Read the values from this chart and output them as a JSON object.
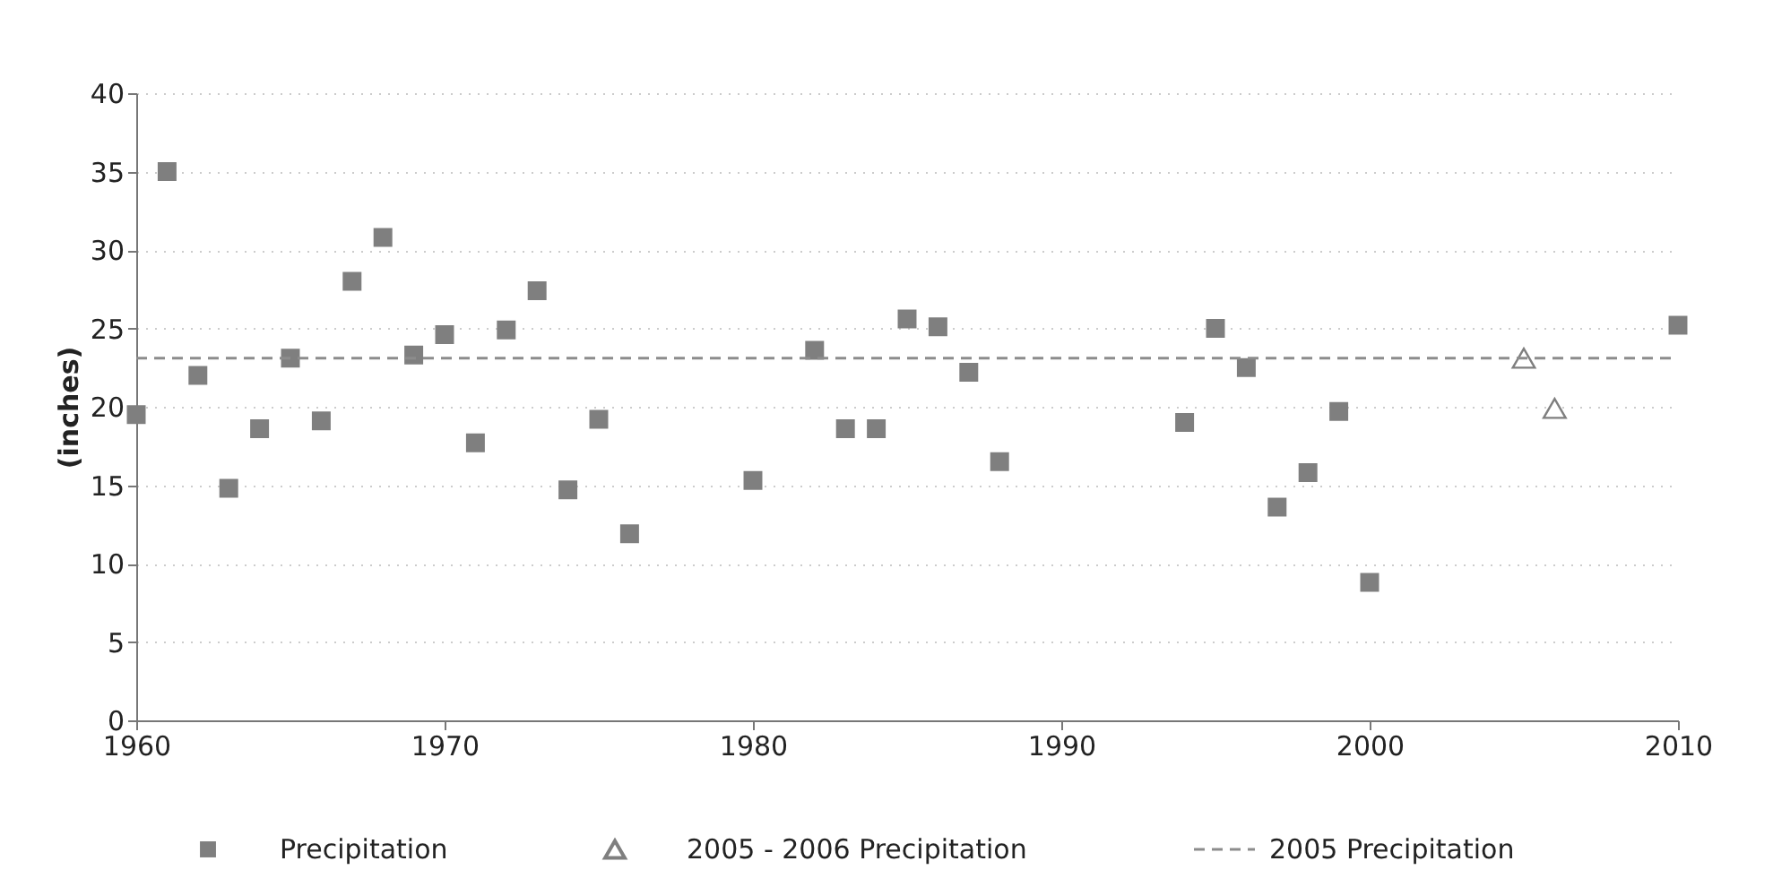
{
  "chart_data": {
    "type": "scatter",
    "ylabel": "(inches)",
    "xlim": [
      1960,
      2010
    ],
    "xticks": [
      1960,
      1970,
      1980,
      1990,
      2000,
      2010
    ],
    "ylim": [
      0,
      40
    ],
    "yticks": [
      0,
      5,
      10,
      15,
      20,
      25,
      30,
      35,
      40
    ],
    "grid": "y",
    "legend": "bottom",
    "series": [
      {
        "name": "Precipitation",
        "type": "scatter",
        "marker": "square",
        "color": "#7f7f7f",
        "x": [
          1960,
          1961,
          1962,
          1963,
          1964,
          1965,
          1966,
          1967,
          1968,
          1969,
          1970,
          1971,
          1972,
          1973,
          1974,
          1975,
          1976,
          1980,
          1982,
          1983,
          1984,
          1985,
          1986,
          1987,
          1988,
          1994,
          1995,
          1996,
          1997,
          1998,
          1999,
          2000,
          2010
        ],
        "values": [
          19.5,
          35.0,
          22.0,
          14.8,
          18.6,
          23.1,
          19.1,
          28.0,
          30.8,
          23.3,
          24.6,
          17.7,
          24.9,
          27.4,
          14.7,
          19.2,
          11.9,
          15.3,
          23.6,
          18.6,
          18.6,
          25.6,
          25.1,
          22.2,
          16.5,
          19.0,
          25.0,
          22.5,
          13.6,
          15.8,
          19.7,
          8.8,
          25.2
        ]
      },
      {
        "name": "2005 - 2006 Precipitation",
        "type": "scatter",
        "marker": "triangle",
        "color": "#7f7f7f",
        "x": [
          2005,
          2006
        ],
        "values": [
          23.1,
          19.9
        ]
      },
      {
        "name": "2005 Precipitation",
        "type": "line",
        "line_style": "dashed",
        "marker": "none",
        "color": "#8c8c8c",
        "x": [
          1960,
          2010
        ],
        "values": [
          23.1,
          23.1
        ]
      }
    ]
  }
}
